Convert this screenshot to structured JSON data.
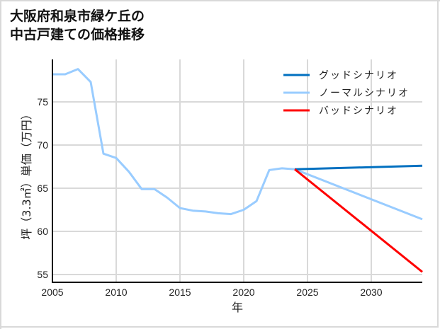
{
  "title_line1": "大阪府和泉市緑ケ丘の",
  "title_line2": "中古戸建ての価格推移",
  "chart_data": {
    "type": "line",
    "title": "大阪府和泉市緑ケ丘の中古戸建ての価格推移",
    "xlabel": "年",
    "ylabel": "坪（3.3㎡）単価（万円）",
    "xlim": [
      2005,
      2034
    ],
    "ylim": [
      54.5,
      79.5
    ],
    "x_ticks": [
      2005,
      2010,
      2015,
      2020,
      2025,
      2030
    ],
    "y_ticks": [
      55,
      60,
      65,
      70,
      75
    ],
    "grid": true,
    "legend_position": "upper right",
    "series": [
      {
        "name": "グッドシナリオ",
        "color": "#0070c0",
        "x": [
          2024,
          2034
        ],
        "values": [
          67.2,
          67.6
        ]
      },
      {
        "name": "ノーマルシナリオ",
        "color": "#99ccff",
        "x": [
          2005,
          2006,
          2007,
          2008,
          2009,
          2010,
          2011,
          2012,
          2013,
          2014,
          2015,
          2016,
          2017,
          2018,
          2019,
          2020,
          2021,
          2022,
          2023,
          2024,
          2034
        ],
        "values": [
          78.2,
          78.2,
          78.8,
          77.3,
          69.0,
          68.5,
          66.9,
          64.9,
          64.9,
          63.9,
          62.7,
          62.4,
          62.3,
          62.1,
          62.0,
          62.5,
          63.5,
          67.1,
          67.3,
          67.2,
          61.4
        ]
      },
      {
        "name": "バッドシナリオ",
        "color": "#ff0000",
        "x": [
          2024,
          2034
        ],
        "values": [
          67.2,
          55.3
        ]
      }
    ]
  },
  "legend": [
    {
      "label": "グッドシナリオ",
      "color": "#0070c0"
    },
    {
      "label": "ノーマルシナリオ",
      "color": "#99ccff"
    },
    {
      "label": "バッドシナリオ",
      "color": "#ff0000"
    }
  ],
  "axis": {
    "xlabel": "年",
    "ylabel": "坪（3.3㎡）単価（万円）",
    "x_ticks": [
      "2005",
      "2010",
      "2015",
      "2020",
      "2025",
      "2030"
    ],
    "y_ticks": [
      "55",
      "60",
      "65",
      "70",
      "75"
    ]
  }
}
